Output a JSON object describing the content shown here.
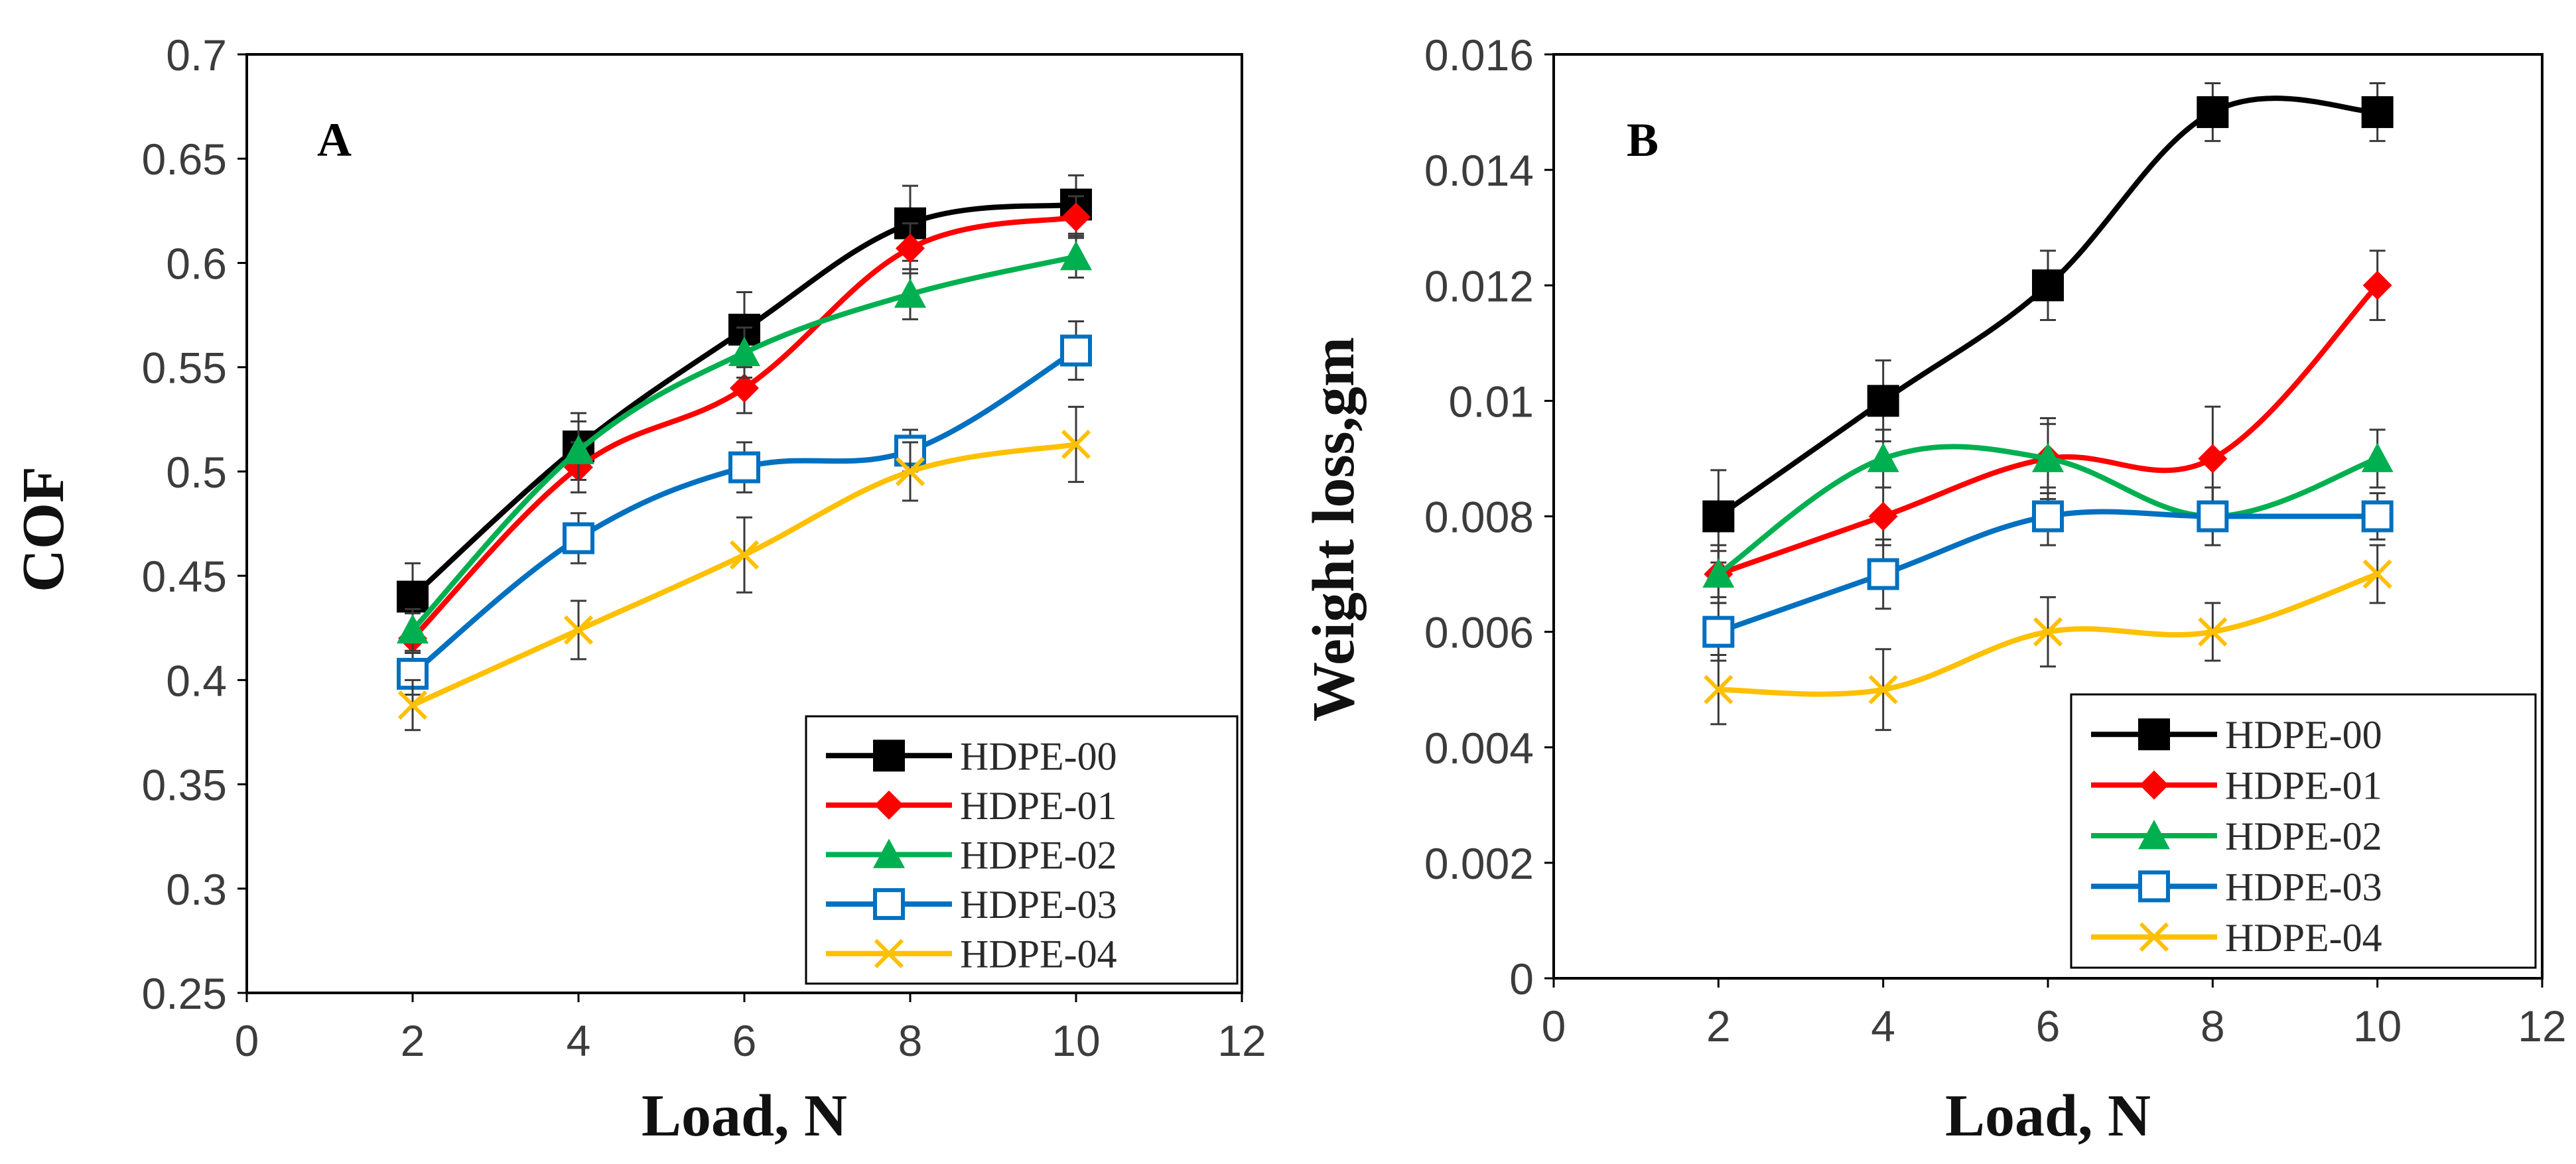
{
  "chart_data": [
    {
      "type": "line",
      "panel_label": "A",
      "xlabel": "Load, N",
      "ylabel": "COF",
      "xlim": [
        0,
        12
      ],
      "ylim": [
        0.25,
        0.7
      ],
      "xticks": [
        "0",
        "2",
        "4",
        "6",
        "8",
        "10",
        "12"
      ],
      "yticks": [
        "0.25",
        "0.3",
        "0.35",
        "0.4",
        "0.45",
        "0.5",
        "0.55",
        "0.6",
        "0.65",
        "0.7"
      ],
      "legend_position": "bottom-right",
      "grid": false,
      "x": [
        2,
        4,
        6,
        8,
        10
      ],
      "series": [
        {
          "name": "HDPE-00",
          "color": "#000000",
          "marker": "filled-square",
          "values": [
            0.44,
            0.512,
            0.568,
            0.619,
            0.628
          ],
          "errors": [
            0.016,
            0.016,
            0.018,
            0.018,
            0.014
          ]
        },
        {
          "name": "HDPE-01",
          "color": "#ff0000",
          "marker": "filled-diamond",
          "values": [
            0.42,
            0.502,
            0.54,
            0.607,
            0.622
          ],
          "errors": [
            0.012,
            0.012,
            0.012,
            0.012,
            0.01
          ]
        },
        {
          "name": "HDPE-02",
          "color": "#00b050",
          "marker": "filled-triangle",
          "values": [
            0.424,
            0.51,
            0.557,
            0.585,
            0.603
          ],
          "errors": [
            0.01,
            0.014,
            0.012,
            0.012,
            0.01
          ]
        },
        {
          "name": "HDPE-03",
          "color": "#0070c0",
          "marker": "open-square",
          "values": [
            0.403,
            0.468,
            0.502,
            0.51,
            0.558
          ],
          "errors": [
            0.01,
            0.012,
            0.012,
            0.01,
            0.014
          ]
        },
        {
          "name": "HDPE-04",
          "color": "#ffc000",
          "marker": "x",
          "values": [
            0.388,
            0.424,
            0.46,
            0.5,
            0.513
          ],
          "errors": [
            0.012,
            0.014,
            0.018,
            0.014,
            0.018
          ]
        }
      ]
    },
    {
      "type": "line",
      "panel_label": "B",
      "xlabel": "Load, N",
      "ylabel": "Weight loss,gm",
      "xlim": [
        0,
        12
      ],
      "ylim": [
        0,
        0.016
      ],
      "xticks": [
        "0",
        "2",
        "4",
        "6",
        "8",
        "10",
        "12"
      ],
      "yticks": [
        "0",
        "0.002",
        "0.004",
        "0.006",
        "0.008",
        "0.01",
        "0.012",
        "0.014",
        "0.016"
      ],
      "legend_position": "bottom-right",
      "grid": false,
      "x": [
        2,
        4,
        6,
        8,
        10
      ],
      "series": [
        {
          "name": "HDPE-00",
          "color": "#000000",
          "marker": "filled-square",
          "values": [
            0.008,
            0.01,
            0.012,
            0.015,
            0.015
          ],
          "errors": [
            0.0008,
            0.0007,
            0.0006,
            0.0005,
            0.0005
          ]
        },
        {
          "name": "HDPE-01",
          "color": "#ff0000",
          "marker": "filled-diamond",
          "values": [
            0.007,
            0.008,
            0.009,
            0.009,
            0.012
          ],
          "errors": [
            0.0005,
            0.0005,
            0.0006,
            0.0009,
            0.0006
          ]
        },
        {
          "name": "HDPE-02",
          "color": "#00b050",
          "marker": "filled-triangle",
          "values": [
            0.007,
            0.009,
            0.009,
            0.008,
            0.009
          ],
          "errors": [
            0.0004,
            0.0005,
            0.0007,
            0.0005,
            0.0005
          ]
        },
        {
          "name": "HDPE-03",
          "color": "#0070c0",
          "marker": "open-square",
          "values": [
            0.006,
            0.007,
            0.008,
            0.008,
            0.008
          ],
          "errors": [
            0.0005,
            0.0006,
            0.0005,
            0.0005,
            0.0004
          ]
        },
        {
          "name": "HDPE-04",
          "color": "#ffc000",
          "marker": "x",
          "values": [
            0.005,
            0.005,
            0.006,
            0.006,
            0.007
          ],
          "errors": [
            0.0006,
            0.0007,
            0.0006,
            0.0005,
            0.0005
          ]
        }
      ]
    }
  ]
}
